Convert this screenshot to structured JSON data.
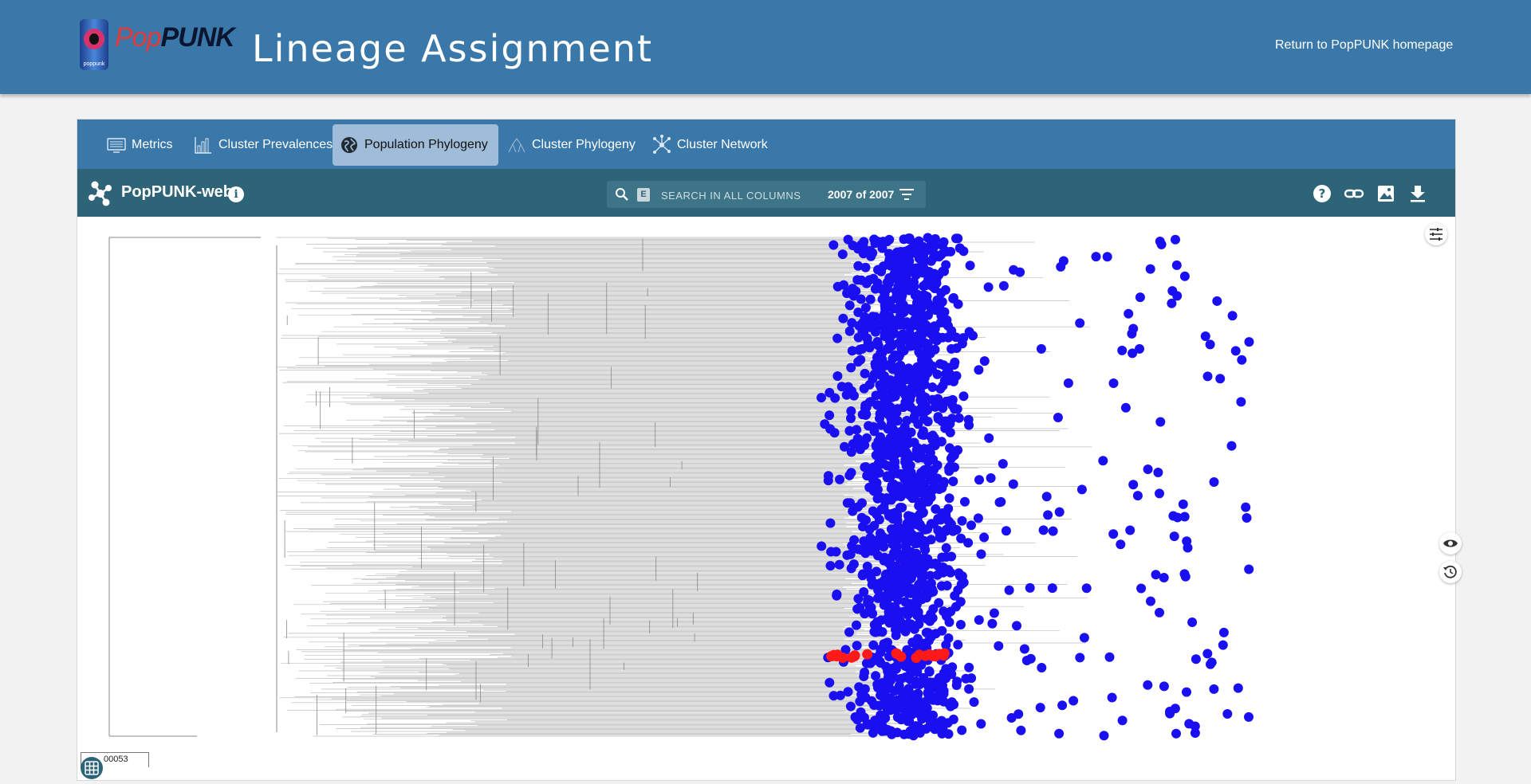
{
  "header": {
    "logo_pop": "Pop",
    "logo_punk": "PUNK",
    "logo_can_label": "poppunk",
    "title": "Lineage Assignment",
    "home_link": "Return to PopPUNK homepage"
  },
  "tabs": [
    {
      "label": "Metrics",
      "icon": "monitor-icon",
      "active": false
    },
    {
      "label": "Cluster Prevalences",
      "icon": "bar-chart-icon",
      "active": false
    },
    {
      "label": "Population Phylogeny",
      "icon": "globe-icon",
      "active": true
    },
    {
      "label": "Cluster Phylogeny",
      "icon": "tree-icon",
      "active": false
    },
    {
      "label": "Cluster Network",
      "icon": "network-icon",
      "active": false
    }
  ],
  "microreact": {
    "title": "PopPUNK-web",
    "search_placeholder": "SEARCH IN ALL COLUMNS",
    "search_badge": "E",
    "count": "2007 of 2007"
  },
  "tree": {
    "scale_label": "00053",
    "colors": {
      "branch": "#888888",
      "cluster": "#1a0ff0",
      "query": "#ff1a1a"
    }
  }
}
